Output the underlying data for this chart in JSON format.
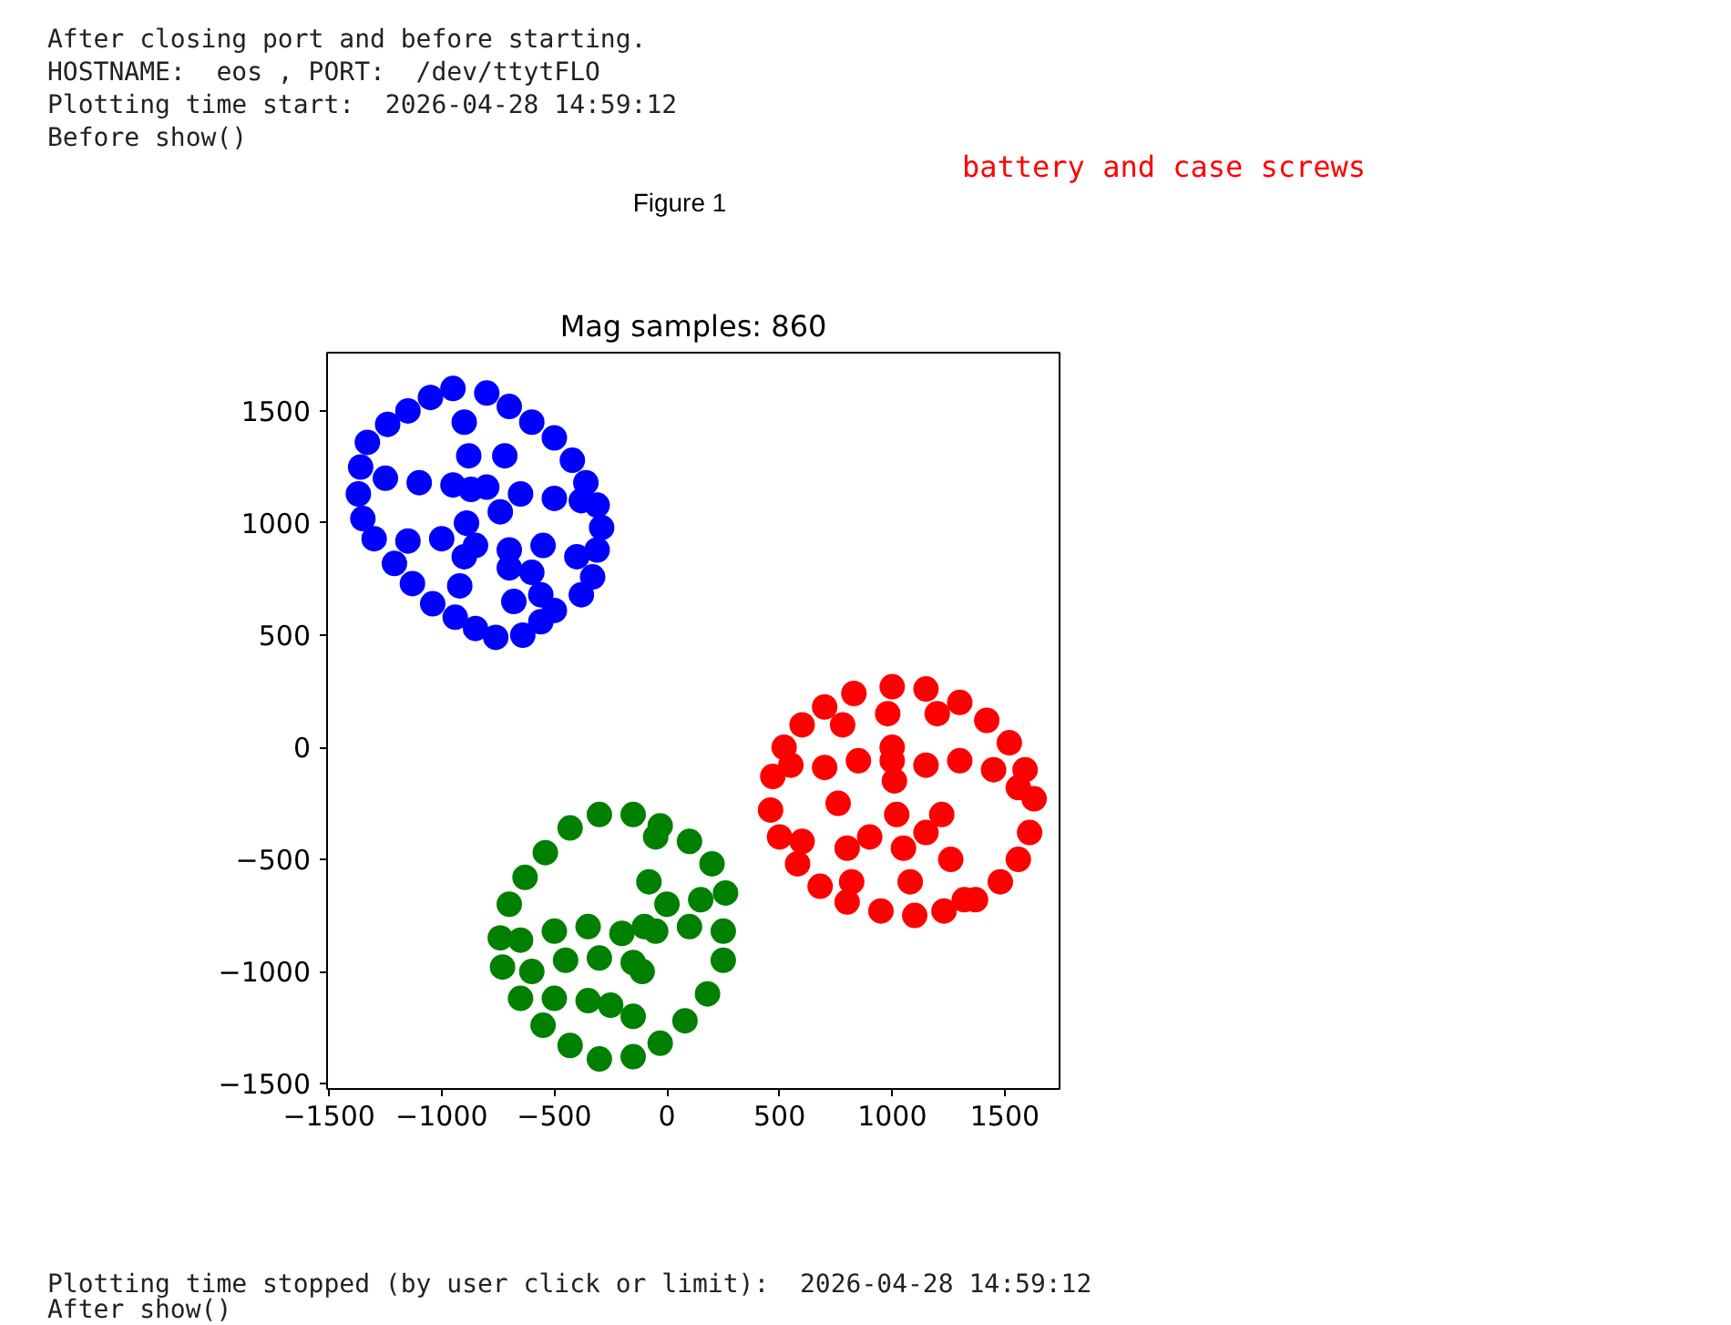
{
  "chart_data": {
    "type": "scatter",
    "title": "Mag samples: 860",
    "annotations": [
      "After closing port and before starting.",
      "HOSTNAME:  eos , PORT:  /dev/ttytFLO",
      "Plotting time start:  2026-04-28 14:59:12",
      "Before show()",
      "battery and case screws",
      "Figure 1",
      "Plotting time stopped (by user click or limit):  2026-04-28 14:59:12",
      "After show()"
    ],
    "xlim": [
      -1509,
      1743
    ],
    "ylim": [
      -1524,
      1760
    ],
    "xticks": [
      {
        "value": -1500,
        "label": "−1500"
      },
      {
        "value": -1000,
        "label": "−1000"
      },
      {
        "value": -500,
        "label": "−500"
      },
      0,
      500,
      1000,
      1500
    ],
    "yticks": [
      {
        "value": -1500,
        "label": "−1500"
      },
      {
        "value": -1000,
        "label": "−1000"
      },
      {
        "value": -500,
        "label": "−500"
      },
      0,
      500,
      1000,
      1500
    ],
    "grid": false,
    "marker": "circle",
    "series": [
      {
        "color": "#0000ff",
        "x": [
          -800,
          -700,
          -600,
          -500,
          -420,
          -360,
          -310,
          -290,
          -310,
          -330,
          -380,
          -500,
          -560,
          -640,
          -760,
          -850,
          -940,
          -1040,
          -1130,
          -1210,
          -1300,
          -1350,
          -1370,
          -1360,
          -1330,
          -1240,
          -1150,
          -1050,
          -950,
          -900,
          -880,
          -870,
          -890,
          -900,
          -920,
          -1250,
          -1100,
          -950,
          -800,
          -650,
          -500,
          -380,
          -1150,
          -1000,
          -850,
          -700,
          -550,
          -400,
          -720,
          -740,
          -700,
          -680,
          -600,
          -560
        ],
        "values": [
          1580,
          1520,
          1450,
          1380,
          1280,
          1180,
          1080,
          980,
          880,
          760,
          680,
          610,
          560,
          500,
          490,
          530,
          580,
          640,
          730,
          820,
          930,
          1020,
          1130,
          1250,
          1360,
          1440,
          1500,
          1560,
          1600,
          1450,
          1300,
          1150,
          1000,
          850,
          720,
          1200,
          1180,
          1170,
          1160,
          1130,
          1110,
          1100,
          920,
          930,
          900,
          880,
          900,
          850,
          1300,
          1050,
          800,
          650,
          780,
          680
        ]
      },
      {
        "color": "#ff0000",
        "x": [
          1000,
          1150,
          1300,
          1420,
          1520,
          1590,
          1630,
          1610,
          1560,
          1480,
          1370,
          1230,
          1100,
          950,
          800,
          680,
          580,
          500,
          460,
          470,
          520,
          600,
          700,
          830,
          550,
          700,
          850,
          1000,
          1150,
          1300,
          1450,
          1560,
          980,
          1000,
          1010,
          1020,
          1050,
          1080,
          780,
          760,
          800,
          820,
          1200,
          1220,
          1260,
          1320,
          600,
          900,
          1150
        ],
        "values": [
          270,
          260,
          200,
          120,
          20,
          -100,
          -230,
          -380,
          -500,
          -600,
          -680,
          -730,
          -750,
          -730,
          -690,
          -620,
          -520,
          -400,
          -280,
          -130,
          0,
          100,
          180,
          240,
          -80,
          -90,
          -60,
          -60,
          -80,
          -60,
          -100,
          -180,
          150,
          0,
          -150,
          -300,
          -450,
          -600,
          100,
          -250,
          -450,
          -600,
          150,
          -300,
          -500,
          -680,
          -420,
          -400,
          -380
        ]
      },
      {
        "color": "#008000",
        "x": [
          -300,
          -150,
          -30,
          100,
          200,
          260,
          250,
          180,
          80,
          -30,
          -150,
          -300,
          -430,
          -550,
          -650,
          -730,
          -740,
          -700,
          -630,
          -540,
          -430,
          -50,
          -80,
          -100,
          -110,
          -150,
          -650,
          -500,
          -350,
          -200,
          -50,
          100,
          250,
          -600,
          -450,
          -300,
          -150,
          0,
          150,
          -500,
          -350,
          -250
        ],
        "values": [
          -300,
          -300,
          -350,
          -420,
          -520,
          -650,
          -950,
          -1100,
          -1220,
          -1320,
          -1380,
          -1390,
          -1330,
          -1240,
          -1120,
          -980,
          -850,
          -700,
          -580,
          -470,
          -360,
          -400,
          -600,
          -800,
          -1000,
          -1200,
          -860,
          -820,
          -800,
          -830,
          -820,
          -800,
          -820,
          -1000,
          -950,
          -940,
          -960,
          -700,
          -680,
          -1120,
          -1130,
          -1150
        ]
      }
    ]
  }
}
